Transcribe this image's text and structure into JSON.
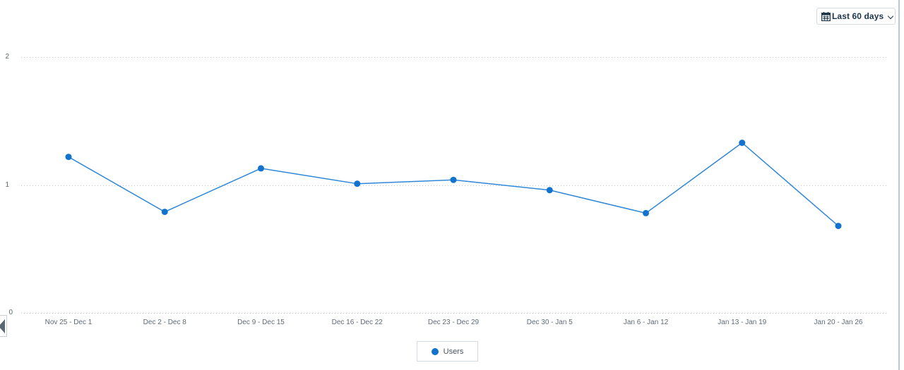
{
  "controls": {
    "date_range_button": {
      "label": "Last 60 days",
      "icon": "calendar-icon"
    },
    "scroll_left_button": {
      "icon": "left-arrow-icon"
    }
  },
  "chart_data": {
    "type": "line",
    "title": "",
    "xlabel": "",
    "ylabel": "",
    "categories": [
      "Nov 25 - Dec 1",
      "Dec 2 - Dec 8",
      "Dec 9 - Dec 15",
      "Dec 16 - Dec 22",
      "Dec 23 - Dec 29",
      "Dec 30 - Jan 5",
      "Jan 6 - Jan 12",
      "Jan 13 - Jan 19",
      "Jan 20 - Jan 26"
    ],
    "series": [
      {
        "name": "Users",
        "values": [
          1.22,
          0.79,
          1.13,
          1.01,
          1.04,
          0.96,
          0.78,
          1.33,
          0.68
        ],
        "color": "#1173ce",
        "line_color": "#2f87d8"
      }
    ],
    "ylim": [
      0,
      2
    ],
    "yticks": [
      0,
      1,
      2
    ],
    "grid": "horizontal dotted",
    "legend_position": "bottom-center"
  },
  "colors": {
    "grid": "#c9cdd1",
    "axis_label": "#5a6872",
    "x_axis_label": "#5f6b78",
    "button_text": "#1d3649",
    "border": "#d4dae0",
    "right_edge_line": "#bac7d8"
  }
}
